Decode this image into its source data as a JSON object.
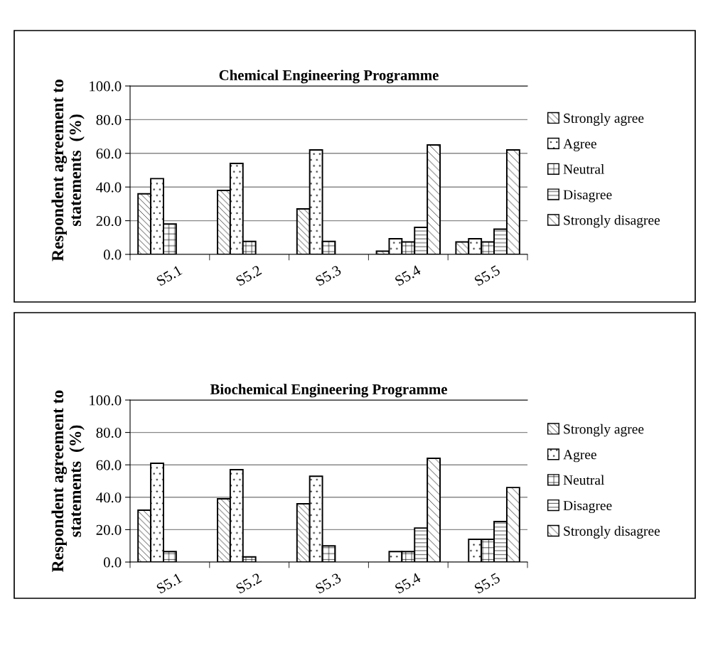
{
  "chart_data": [
    {
      "type": "bar",
      "title": "Chemical Engineering Programme",
      "ylabel": "Respondent agreement to\nstatements  (%)",
      "categories": [
        "S5.1",
        "S5.2",
        "S5.3",
        "S5.4",
        "S5.5"
      ],
      "series": [
        {
          "name": "Strongly agree",
          "color": "#ffffff",
          "values": [
            36,
            38,
            27,
            1.9,
            7.4
          ]
        },
        {
          "name": "Agree",
          "color": "#ffffff",
          "values": [
            45,
            54,
            62,
            9.3,
            9.3
          ]
        },
        {
          "name": "Neutral",
          "color": "#ffffff",
          "values": [
            18,
            7.7,
            7.7,
            7.4,
            7.4
          ]
        },
        {
          "name": "Disagree",
          "color": "#ffffff",
          "values": [
            0,
            0,
            0,
            16,
            15
          ]
        },
        {
          "name": "Strongly disagree",
          "color": "#ffffff",
          "values": [
            0,
            0,
            0,
            65,
            62
          ]
        }
      ],
      "ylim": [
        0,
        100
      ],
      "yticks": [
        {
          "value": 0,
          "label": "0.0"
        },
        {
          "value": 20,
          "label": "20.0"
        },
        {
          "value": 40,
          "label": "40.0"
        },
        {
          "value": 60,
          "label": "60.0"
        },
        {
          "value": 80,
          "label": "80.0"
        },
        {
          "value": 100,
          "label": "100.0"
        }
      ],
      "grid": "y",
      "legend": "right"
    },
    {
      "type": "bar",
      "title": "Biochemical Engineering Programme",
      "ylabel": "Respondent agreement to\nstatements  (%)",
      "categories": [
        "S5.1",
        "S5.2",
        "S5.3",
        "S5.4",
        "S5.5"
      ],
      "series": [
        {
          "name": "Strongly agree",
          "color": "#ffffff",
          "values": [
            32,
            39,
            36,
            0,
            0
          ]
        },
        {
          "name": "Agree",
          "color": "#ffffff",
          "values": [
            61,
            57,
            53,
            6.5,
            14
          ]
        },
        {
          "name": "Neutral",
          "color": "#ffffff",
          "values": [
            6.5,
            3.2,
            10,
            6.5,
            14
          ]
        },
        {
          "name": "Disagree",
          "color": "#ffffff",
          "values": [
            0,
            0,
            0,
            21,
            25
          ]
        },
        {
          "name": "Strongly disagree",
          "color": "#ffffff",
          "values": [
            0,
            0,
            0,
            64,
            46
          ]
        }
      ],
      "ylim": [
        0,
        100
      ],
      "yticks": [
        {
          "value": 0,
          "label": "0.0"
        },
        {
          "value": 20,
          "label": "20.0"
        },
        {
          "value": 40,
          "label": "40.0"
        },
        {
          "value": 60,
          "label": "60.0"
        },
        {
          "value": 80,
          "label": "80.0"
        },
        {
          "value": 100,
          "label": "100.0"
        }
      ],
      "grid": "y",
      "legend": "right"
    }
  ]
}
